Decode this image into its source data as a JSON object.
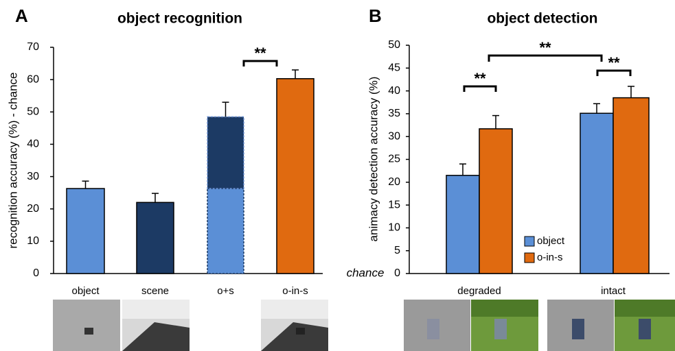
{
  "chart_data": [
    {
      "type": "bar",
      "panel": "A",
      "title": "object recognition",
      "y_label": "recognition accuracy (%) - chance",
      "categories": [
        "object",
        "scene",
        "o+s",
        "o-in-s"
      ],
      "values": [
        26.3,
        22,
        26.3,
        60.3
      ],
      "colors": [
        "#5b8fd6",
        "#1c3a64",
        "#5b8fd6",
        "#e06a10"
      ],
      "stack_values": [
        null,
        null,
        22.2,
        null
      ],
      "stack_color": "#1c3a64",
      "errors": [
        2.3,
        2.8,
        4.5,
        2.7
      ],
      "ylim": [
        0,
        70
      ],
      "yticks": [
        0,
        10,
        20,
        30,
        40,
        50,
        60,
        70
      ],
      "annotations": [
        "**"
      ]
    },
    {
      "type": "grouped_bar",
      "panel": "B",
      "title": "object detection",
      "y_label": "animacy detection accuracy (%)",
      "baseline_label": "chance",
      "categories": [
        "degraded",
        "intact"
      ],
      "series": [
        {
          "name": "object",
          "color": "#5b8fd6",
          "values": [
            21.5,
            35.1
          ],
          "errors": [
            2.5,
            2.1
          ]
        },
        {
          "name": "o-in-s",
          "color": "#e06a10",
          "values": [
            31.7,
            38.5
          ],
          "errors": [
            2.9,
            2.5
          ]
        }
      ],
      "ylim": [
        0,
        50
      ],
      "yticks": [
        0,
        5,
        10,
        15,
        20,
        25,
        30,
        35,
        40,
        45,
        50
      ],
      "annotations": [
        "**",
        "**",
        "**"
      ]
    }
  ]
}
